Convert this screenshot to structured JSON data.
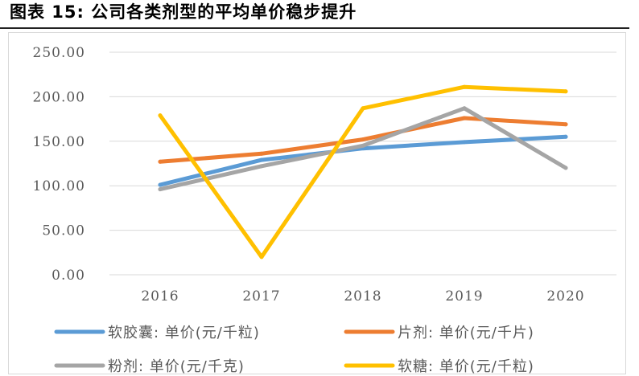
{
  "header": {
    "title": "图表 15:   公司各类剂型的平均单价稳步提升"
  },
  "chart_data": {
    "type": "line",
    "title": "",
    "xlabel": "",
    "ylabel": "",
    "categories": [
      "2016",
      "2017",
      "2018",
      "2019",
      "2020"
    ],
    "y_tick_labels": [
      "0.00",
      "50.00",
      "100.00",
      "150.00",
      "200.00",
      "250.00"
    ],
    "ylim": [
      0,
      250
    ],
    "grid": true,
    "legend_position": "bottom",
    "series": [
      {
        "name": "软胶囊: 单价(元/千粒)",
        "color": "#5b9bd5",
        "values": [
          101,
          129,
          142,
          149,
          155
        ]
      },
      {
        "name": "片剂: 单价(元/千片)",
        "color": "#ed7d31",
        "values": [
          127,
          136,
          152,
          176,
          169
        ]
      },
      {
        "name": "粉剂: 单价(元/千克)",
        "color": "#a5a5a5",
        "values": [
          96,
          122,
          145,
          187,
          120
        ]
      },
      {
        "name": "软糖: 单价(元/千粒)",
        "color": "#ffc000",
        "values": [
          179,
          20,
          187,
          211,
          206
        ]
      }
    ]
  }
}
